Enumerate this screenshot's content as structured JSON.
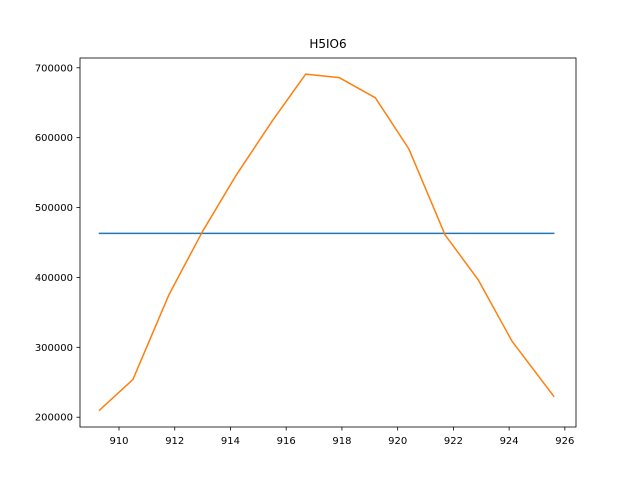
{
  "chart_data": {
    "type": "line",
    "title": "H5IO6",
    "xlabel": "",
    "ylabel": "",
    "xlim": [
      908.6,
      926.4
    ],
    "ylim": [
      186000,
      714000
    ],
    "xticks": [
      910,
      912,
      914,
      916,
      918,
      920,
      922,
      924,
      926
    ],
    "yticks": [
      200000,
      300000,
      400000,
      500000,
      600000,
      700000
    ],
    "grid": false,
    "legend": "none",
    "series": [
      {
        "color": "#1f77b4",
        "x": [
          909.3,
          925.6
        ],
        "y": [
          463000,
          463000
        ]
      },
      {
        "color": "#ff7f0e",
        "x": [
          909.3,
          910.5,
          911.8,
          913.0,
          914.2,
          915.5,
          916.7,
          917.9,
          919.2,
          920.4,
          921.7,
          922.9,
          924.1,
          925.6
        ],
        "y": [
          210000,
          254000,
          376000,
          466000,
          546000,
          624000,
          691000,
          686000,
          657000,
          584000,
          461000,
          396000,
          309000,
          230000
        ]
      }
    ]
  }
}
